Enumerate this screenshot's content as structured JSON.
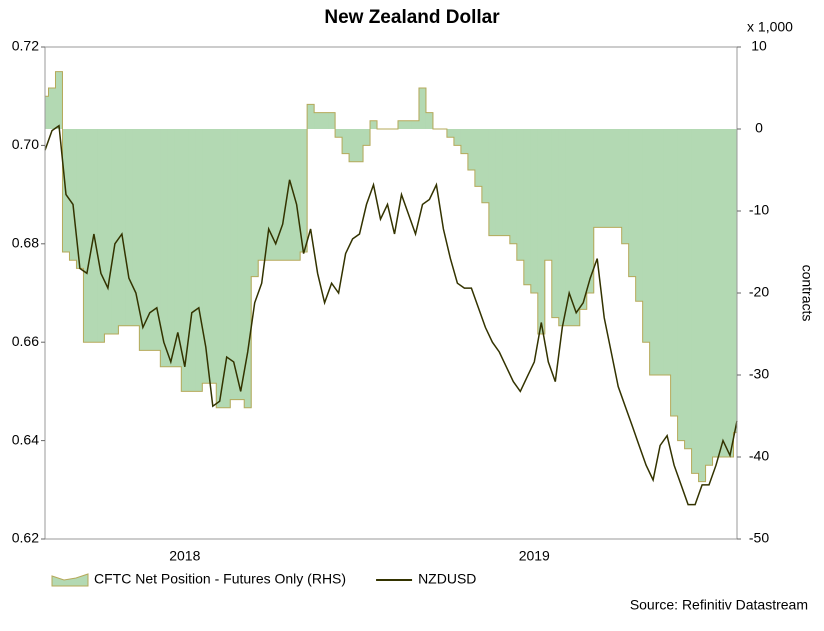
{
  "chart_data": {
    "type": "line",
    "title": "New Zealand Dollar",
    "y2_unit_label": "x 1,000",
    "y2_label": "contracts",
    "source": "Source: Refinitiv Datastream",
    "categories": [
      null,
      null,
      null,
      null,
      null,
      null,
      null,
      null,
      null,
      null,
      null,
      null,
      null,
      null,
      null,
      null,
      null,
      null,
      null,
      null,
      "2018",
      null,
      null,
      null,
      null,
      null,
      null,
      null,
      null,
      null,
      null,
      null,
      null,
      null,
      null,
      null,
      null,
      null,
      null,
      null,
      null,
      null,
      null,
      null,
      null,
      null,
      null,
      null,
      null,
      null,
      null,
      null,
      null,
      null,
      null,
      null,
      null,
      null,
      null,
      null,
      null,
      null,
      null,
      null,
      null,
      null,
      null,
      null,
      null,
      null,
      "2019",
      null,
      null,
      null,
      null,
      null,
      null,
      null,
      null,
      null,
      null,
      null,
      null,
      null,
      null,
      null,
      null,
      null,
      null,
      null,
      null,
      null,
      null,
      null,
      null,
      null,
      null,
      null,
      null,
      null
    ],
    "ylim": [
      0.62,
      0.72
    ],
    "yticks": [
      0.62,
      0.64,
      0.66,
      0.68,
      {
        "value": 0.7,
        "label": "0.70"
      },
      0.72
    ],
    "y2lim": [
      -50,
      10
    ],
    "y2ticks": [
      -50,
      -40,
      -30,
      -20,
      -10,
      0,
      10
    ],
    "grid": false,
    "series": [
      {
        "name": "CFTC Net Position - Futures Only (RHS)",
        "type": "area",
        "axis": "y2",
        "color": "#b3d9b3",
        "edge_color": "#b5a95a",
        "values": [
          4,
          5,
          7,
          -15,
          -16,
          -17,
          -26,
          -26,
          -26,
          -25,
          -25,
          -24,
          -24,
          -24,
          -27,
          -27,
          -27,
          -29,
          -29,
          -29,
          -32,
          -32,
          -32,
          -31,
          -31,
          -34,
          -34,
          -33,
          -33,
          -34,
          -18,
          -16,
          -16,
          -16,
          -16,
          -16,
          -16,
          -15,
          3,
          2,
          2,
          2,
          -1,
          -3,
          -4,
          -4,
          -2,
          1,
          0,
          0,
          0,
          1,
          1,
          1,
          5,
          2,
          0,
          0,
          -1,
          -2,
          -3,
          -5,
          -7,
          -9,
          -13,
          -13,
          -13,
          -14,
          -16,
          -19,
          -20,
          -25,
          -16,
          -23,
          -24,
          -24,
          -24,
          -22,
          -20,
          -12,
          -12,
          -12,
          -12,
          -14,
          -18,
          -21,
          -26,
          -30,
          -30,
          -30,
          -35,
          -38,
          -39,
          -42,
          -43,
          -41,
          -40,
          -40,
          -40,
          -37
        ]
      },
      {
        "name": "NZDUSD",
        "type": "line",
        "color": "#333300",
        "values": [
          0.699,
          0.703,
          0.704,
          0.69,
          0.688,
          0.675,
          0.674,
          0.682,
          0.674,
          0.671,
          0.68,
          0.682,
          0.673,
          0.67,
          0.663,
          0.666,
          0.667,
          0.66,
          0.656,
          0.662,
          0.655,
          0.666,
          0.667,
          0.659,
          0.647,
          0.648,
          0.657,
          0.656,
          0.65,
          0.658,
          0.668,
          0.672,
          0.683,
          0.68,
          0.684,
          0.693,
          0.688,
          0.678,
          0.683,
          0.674,
          0.668,
          0.672,
          0.67,
          0.678,
          0.681,
          0.682,
          0.688,
          0.692,
          0.685,
          0.688,
          0.682,
          0.69,
          0.686,
          0.682,
          0.688,
          0.689,
          0.692,
          0.683,
          0.677,
          0.672,
          0.671,
          0.671,
          0.667,
          0.663,
          0.66,
          0.658,
          0.655,
          0.652,
          0.65,
          0.653,
          0.656,
          0.664,
          0.656,
          0.652,
          0.663,
          0.67,
          0.666,
          0.668,
          0.673,
          0.677,
          0.665,
          0.658,
          0.651,
          0.647,
          0.643,
          0.639,
          0.635,
          0.632,
          0.639,
          0.641,
          0.635,
          0.631,
          0.627,
          0.627,
          0.631,
          0.631,
          0.635,
          0.64,
          0.637,
          0.644
        ]
      }
    ]
  }
}
